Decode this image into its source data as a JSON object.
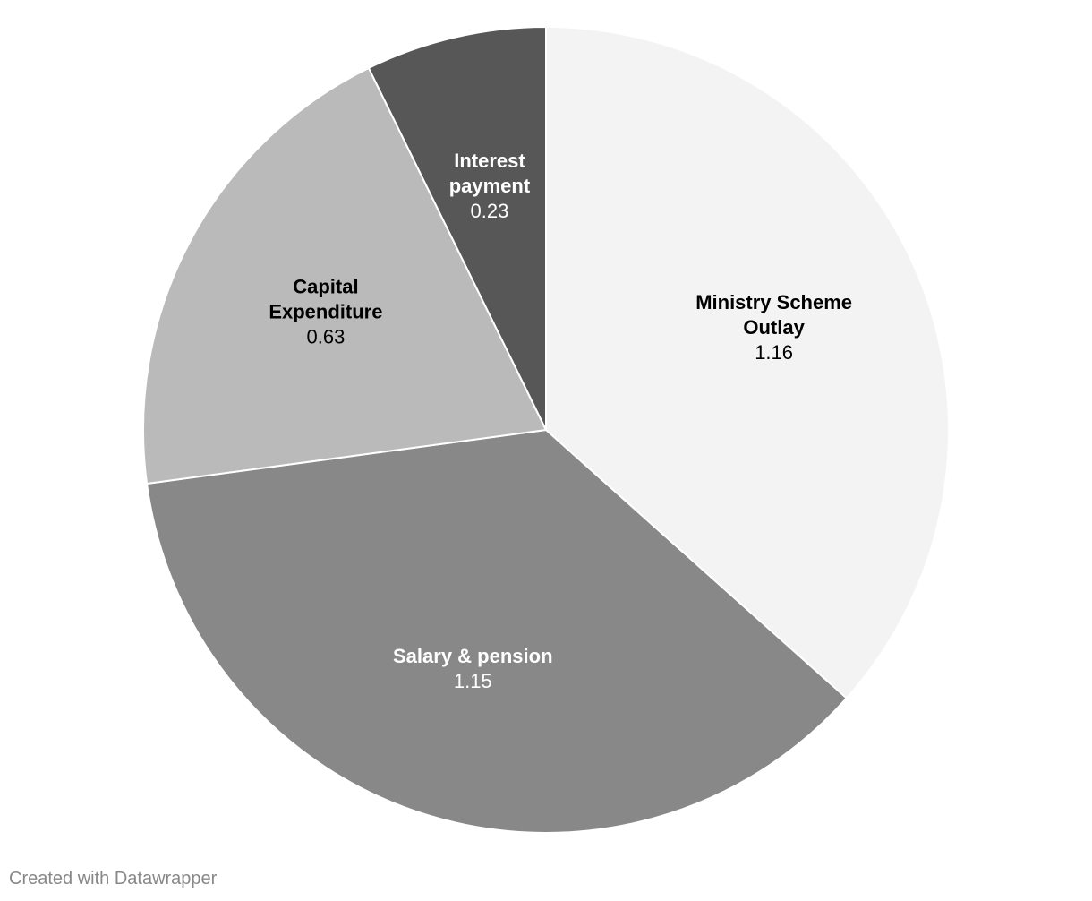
{
  "chart_data": {
    "type": "pie",
    "start_angle_deg": 0,
    "direction": "clockwise",
    "slices": [
      {
        "name": "Ministry Scheme Outlay",
        "name_lines": [
          "Ministry Scheme",
          "Outlay"
        ],
        "value": 1.16,
        "value_label": "1.16",
        "color": "#f3f3f3",
        "label_color": "#000000"
      },
      {
        "name": "Salary & pension",
        "name_lines": [
          "Salary & pension"
        ],
        "value": 1.15,
        "value_label": "1.15",
        "color": "#888888",
        "label_color": "#ffffff"
      },
      {
        "name": "Capital Expenditure",
        "name_lines": [
          "Capital",
          "Expenditure"
        ],
        "value": 0.63,
        "value_label": "0.63",
        "color": "#bababa",
        "label_color": "#000000"
      },
      {
        "name": "Interest payment",
        "name_lines": [
          "Interest",
          "payment"
        ],
        "value": 0.23,
        "value_label": "0.23",
        "color": "#575757",
        "label_color": "#ffffff"
      }
    ]
  },
  "footer": {
    "credit": "Created with Datawrapper"
  }
}
